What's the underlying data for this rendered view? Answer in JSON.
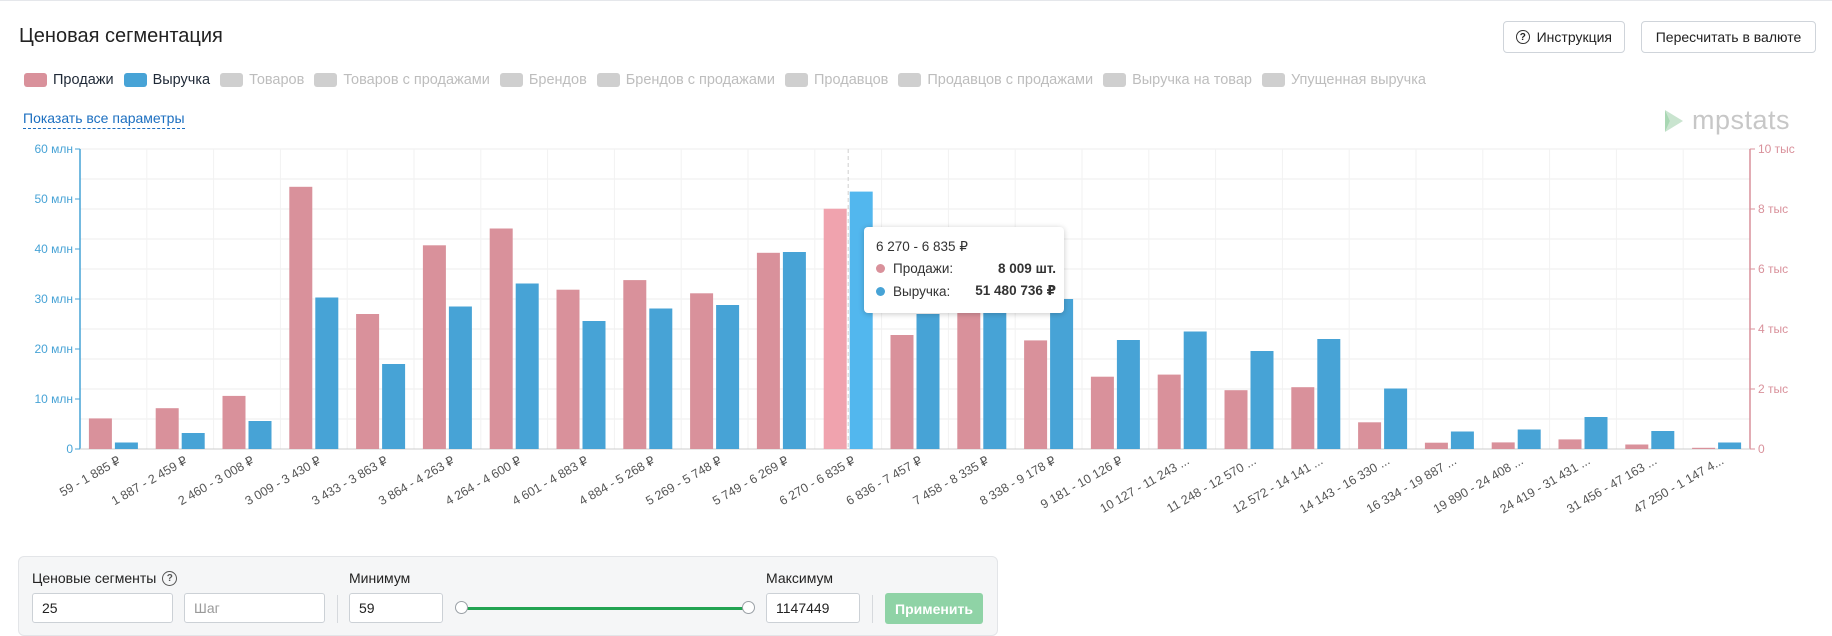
{
  "header": {
    "title": "Ценовая сегментация",
    "help_button": "Инструкция",
    "currency_button": "Пересчитать в валюте"
  },
  "legend": [
    {
      "label": "Продажи",
      "color": "#d9919b",
      "active": true
    },
    {
      "label": "Выручка",
      "color": "#47a3d6",
      "active": true
    },
    {
      "label": "Товаров",
      "active": false
    },
    {
      "label": "Товаров с продажами",
      "active": false
    },
    {
      "label": "Брендов",
      "active": false
    },
    {
      "label": "Брендов с продажами",
      "active": false
    },
    {
      "label": "Продавцов",
      "active": false
    },
    {
      "label": "Продавцов с продажами",
      "active": false
    },
    {
      "label": "Выручка на товар",
      "active": false
    },
    {
      "label": "Упущенная выручка",
      "active": false
    }
  ],
  "show_all_link": "Показать все параметры",
  "logo_text": "mpstats",
  "chart_data": {
    "type": "bar",
    "categories": [
      "59 - 1 885 ₽",
      "1 887 - 2 459 ₽",
      "2 460 - 3 008 ₽",
      "3 009 - 3 430 ₽",
      "3 433 - 3 863 ₽",
      "3 864 - 4 263 ₽",
      "4 264 - 4 600 ₽",
      "4 601 - 4 883 ₽",
      "4 884 - 5 268 ₽",
      "5 269 - 5 748 ₽",
      "5 749 - 6 269 ₽",
      "6 270 - 6 835 ₽",
      "6 836 - 7 457 ₽",
      "7 458 - 8 335 ₽",
      "8 338 - 9 178 ₽",
      "9 181 - 10 126 ₽",
      "10 127 - 11 243 ...",
      "11 248 - 12 570 ...",
      "12 572 - 14 141 ...",
      "14 143 - 16 330 ...",
      "16 334 - 19 887 ...",
      "19 890 - 24 408 ...",
      "24 419 - 31 431 ...",
      "31 456 - 47 163 ...",
      "47 250 - 1 147 4..."
    ],
    "series": [
      {
        "name": "Продажи",
        "axis": "right",
        "unit": "шт.",
        "color": "#d9919b",
        "values": [
          1020,
          1360,
          1770,
          8740,
          4500,
          6790,
          7350,
          5310,
          5630,
          5190,
          6540,
          8009,
          3800,
          4650,
          3620,
          2410,
          2480,
          1960,
          2060,
          890,
          210,
          220,
          320,
          150,
          40
        ]
      },
      {
        "name": "Выручка",
        "axis": "left",
        "unit": "₽",
        "color": "#47a3d6",
        "values": [
          1300000,
          3200000,
          5600000,
          30300000,
          17000000,
          28500000,
          33100000,
          25600000,
          28100000,
          28800000,
          39400000,
          51480736,
          27000000,
          28000000,
          30000000,
          21800000,
          23500000,
          19600000,
          22000000,
          12100000,
          3500000,
          3900000,
          6400000,
          3600000,
          1300000
        ]
      }
    ],
    "y_left": {
      "ticks": [
        0,
        10,
        20,
        30,
        40,
        50,
        60
      ],
      "tick_labels": [
        "0",
        "10 млн",
        "20 млн",
        "30 млн",
        "40 млн",
        "50 млн",
        "60 млн"
      ],
      "color": "#47a3d6"
    },
    "y_right": {
      "ticks": [
        0,
        2,
        4,
        6,
        8,
        10
      ],
      "tick_labels": [
        "0",
        "2 тыс",
        "4 тыс",
        "6 тыс",
        "8 тыс",
        "10 тыс"
      ],
      "color": "#d9919b"
    },
    "highlight_index": 11,
    "grid": true
  },
  "tooltip": {
    "range": "6 270 - 6 835 ₽",
    "rows": [
      {
        "label": "Продажи:",
        "value": "8 009 шт.",
        "color": "#d9919b"
      },
      {
        "label": "Выручка:",
        "value": "51 480 736 ₽",
        "color": "#47a3d6"
      }
    ]
  },
  "controls": {
    "segments_label": "Ценовые сегменты",
    "segments_value": "25",
    "step_placeholder": "Шаг",
    "min_label": "Минимум",
    "min_value": "59",
    "max_label": "Максимум",
    "max_value": "1147449",
    "apply_button": "Применить"
  }
}
